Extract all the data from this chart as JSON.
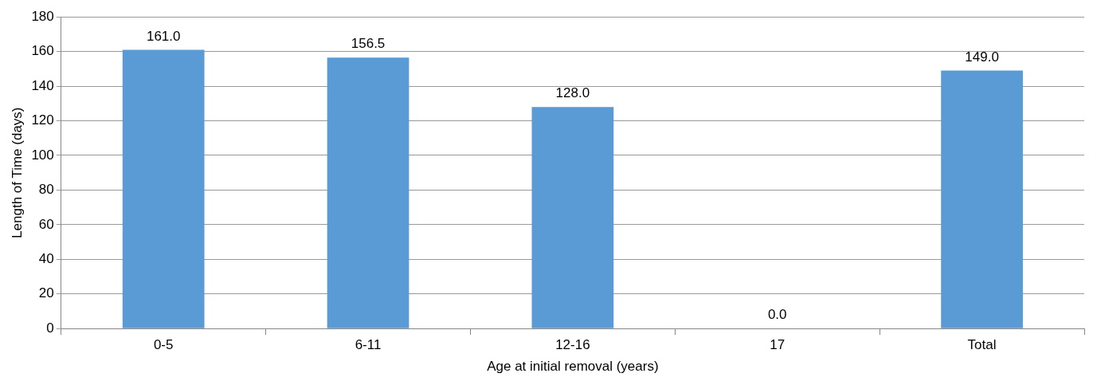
{
  "chart_data": {
    "type": "bar",
    "xlabel": "Age at initial removal (years)",
    "ylabel": "Length of Time (days)",
    "categories": [
      "0-5",
      "6-11",
      "12-16",
      "17",
      "Total"
    ],
    "values": [
      161,
      156.5,
      128,
      0,
      149
    ],
    "value_labels": [
      "161.0",
      "156.5",
      "128.0",
      "0.0",
      "149.0"
    ],
    "color": "#5b9bd5",
    "ylim": [
      0,
      180
    ],
    "yticks": [
      0,
      20,
      40,
      60,
      80,
      100,
      120,
      140,
      160,
      180
    ],
    "grid": "y",
    "legend": false
  }
}
